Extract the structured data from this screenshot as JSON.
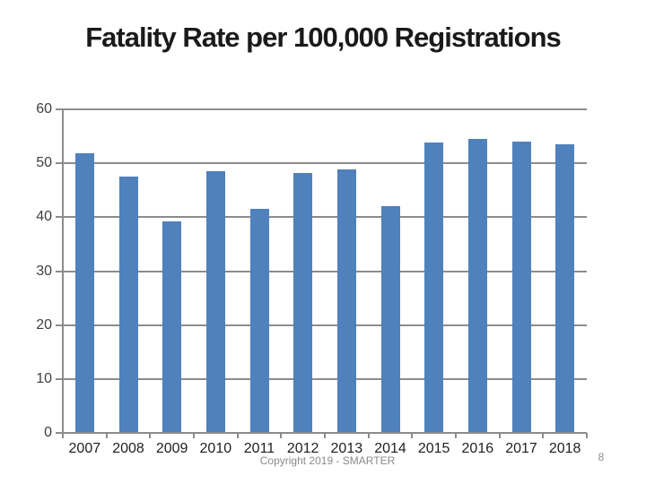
{
  "title": "Fatality Rate per 100,000 Registrations",
  "chart_data": {
    "type": "bar",
    "title": "Fatality Rate per 100,000 Registrations",
    "categories": [
      "2007",
      "2008",
      "2009",
      "2010",
      "2011",
      "2012",
      "2013",
      "2014",
      "2015",
      "2016",
      "2017",
      "2018"
    ],
    "values": [
      51.9,
      47.5,
      39.3,
      48.5,
      41.5,
      48.2,
      48.9,
      42.1,
      53.8,
      54.6,
      54.0,
      53.6
    ],
    "xlabel": "",
    "ylabel": "",
    "ylim": [
      0,
      60
    ],
    "yticks": [
      0,
      10,
      20,
      30,
      40,
      50,
      60
    ],
    "grid": true,
    "legend": false,
    "bar_color": "#4F81BD",
    "gridline_color": "#8C8C8C"
  },
  "colors": {
    "background": "#FFFFFF",
    "title_text": "#1A1A1A",
    "axis_text": "#3F3F3F",
    "x_axis_text": "#1F1F1F",
    "footer_text": "#8A8A8A"
  },
  "footer": {
    "copyright": "Copyright 2019 - SMARTER",
    "page_number": "8"
  }
}
